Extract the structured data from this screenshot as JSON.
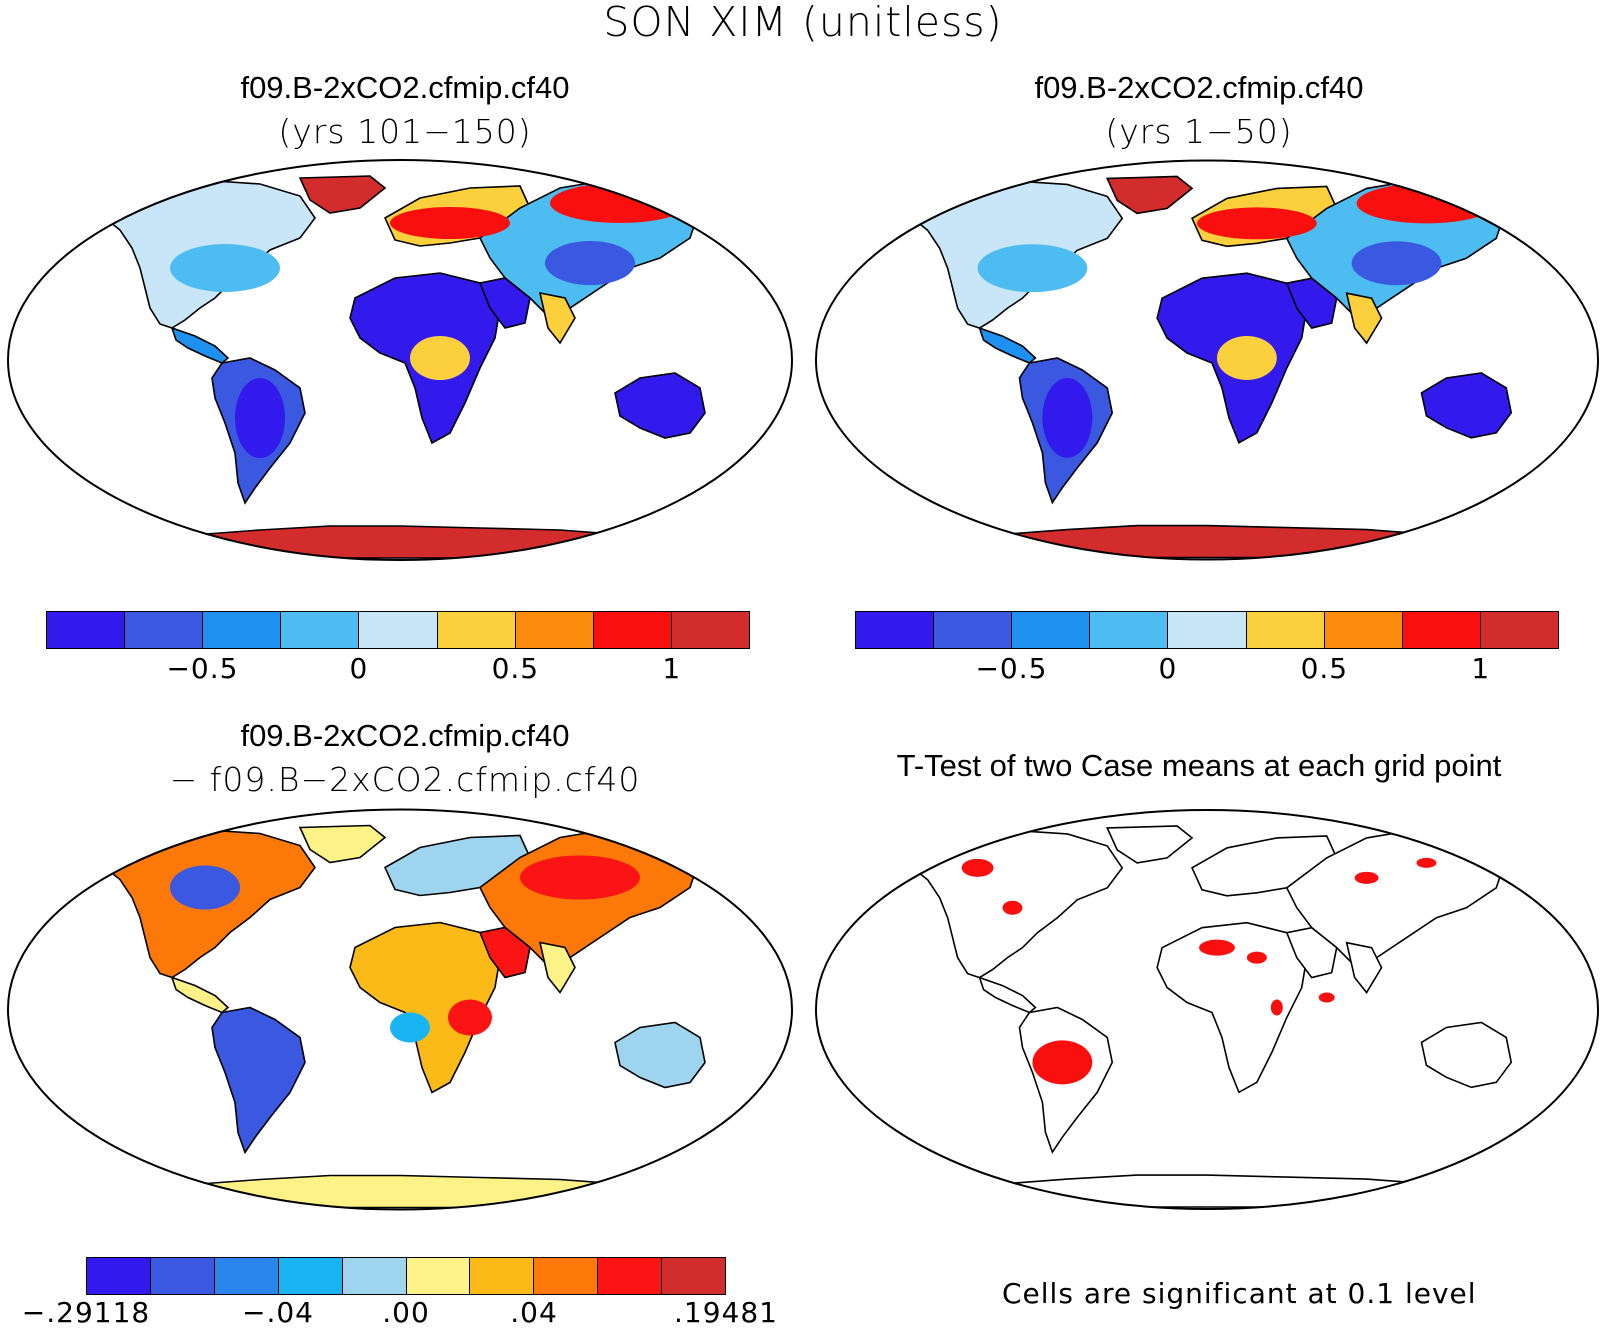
{
  "title": "SON XIM (unitless)",
  "panels": {
    "top_left": {
      "case": "f09.B-2xCO2.cfmip.cf40",
      "subtitle": "(yrs 101−150)"
    },
    "top_right": {
      "case": "f09.B-2xCO2.cfmip.cf40",
      "subtitle": "(yrs 1−50)"
    },
    "bottom_left": {
      "case": "f09.B-2xCO2.cfmip.cf40",
      "subtitle": "− f09.B−2xCO2.cfmip.cf40"
    },
    "bottom_right": {
      "title": "T-Test of two Case means at each grid point",
      "footnote": "Cells are significant at 0.1 level"
    }
  },
  "colorbar_main": {
    "colors": [
      "#3219ec",
      "#3a58e0",
      "#1e90f0",
      "#4dbcf0",
      "#c8e6f8",
      "#fcd03c",
      "#fc8c0c",
      "#fa0f0f",
      "#d22c2c"
    ],
    "tick_labels": [
      "−0.5",
      "0",
      "0.5",
      "1"
    ],
    "tick_values": [
      -0.5,
      0,
      0.5,
      1
    ],
    "range": [
      -1.0,
      1.25
    ]
  },
  "colorbar_diff": {
    "colors": [
      "#3219ec",
      "#3a58e0",
      "#2a86ec",
      "#1ab4f2",
      "#9fd4ee",
      "#fdf288",
      "#fcba18",
      "#fc7808",
      "#fa1414",
      "#d22c2c"
    ],
    "tick_labels": [
      "−.29118",
      "−.04",
      ".00",
      ".04",
      ".19481"
    ]
  },
  "ttest": {
    "significant_color": "#fa0f0f"
  }
}
